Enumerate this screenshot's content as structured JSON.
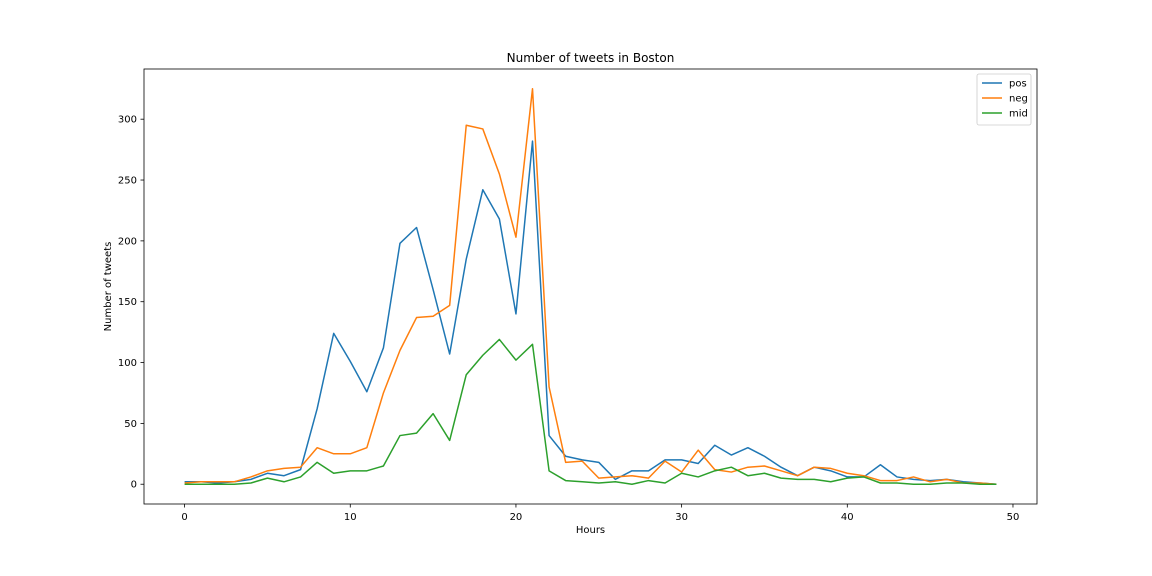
{
  "chart_data": {
    "type": "line",
    "title": "Number of tweets in Boston",
    "xlabel": "Hours",
    "ylabel": "Number of tweets",
    "xlim": [
      -2.45,
      51.45
    ],
    "ylim": [
      -16.25,
      341.25
    ],
    "xticks": [
      0,
      10,
      20,
      30,
      40,
      50
    ],
    "yticks": [
      0,
      50,
      100,
      150,
      200,
      250,
      300
    ],
    "grid": false,
    "legend_position": "top-right",
    "x": [
      0,
      1,
      2,
      3,
      4,
      5,
      6,
      7,
      8,
      9,
      10,
      11,
      12,
      13,
      14,
      15,
      16,
      17,
      18,
      19,
      20,
      21,
      22,
      23,
      24,
      25,
      26,
      27,
      28,
      29,
      30,
      31,
      32,
      33,
      34,
      35,
      36,
      37,
      38,
      39,
      40,
      41,
      42,
      43,
      44,
      45,
      46,
      47,
      48,
      49
    ],
    "series": [
      {
        "name": "pos",
        "color": "#1f77b4",
        "values": [
          2,
          2,
          1,
          2,
          4,
          9,
          7,
          12,
          62,
          124,
          101,
          76,
          112,
          198,
          211,
          160,
          107,
          185,
          242,
          218,
          140,
          282,
          40,
          23,
          20,
          18,
          4,
          11,
          11,
          20,
          20,
          17,
          32,
          24,
          30,
          23,
          14,
          7,
          14,
          11,
          6,
          6,
          16,
          6,
          4,
          3,
          4,
          2,
          1,
          0
        ]
      },
      {
        "name": "neg",
        "color": "#ff7f0e",
        "values": [
          1,
          2,
          2,
          2,
          6,
          11,
          13,
          14,
          30,
          25,
          25,
          30,
          75,
          110,
          137,
          138,
          147,
          295,
          292,
          255,
          203,
          325,
          80,
          18,
          19,
          5,
          6,
          7,
          5,
          19,
          10,
          28,
          12,
          10,
          14,
          15,
          11,
          7,
          14,
          13,
          9,
          7,
          3,
          3,
          6,
          2,
          4,
          1,
          1,
          0
        ]
      },
      {
        "name": "mid",
        "color": "#2ca02c",
        "values": [
          0,
          0,
          0,
          0,
          1,
          5,
          2,
          6,
          18,
          9,
          11,
          11,
          15,
          40,
          42,
          58,
          36,
          90,
          106,
          119,
          102,
          115,
          11,
          3,
          2,
          1,
          2,
          0,
          3,
          1,
          9,
          6,
          11,
          14,
          7,
          9,
          5,
          4,
          4,
          2,
          5,
          6,
          1,
          1,
          0,
          0,
          1,
          1,
          0,
          0
        ]
      }
    ]
  }
}
